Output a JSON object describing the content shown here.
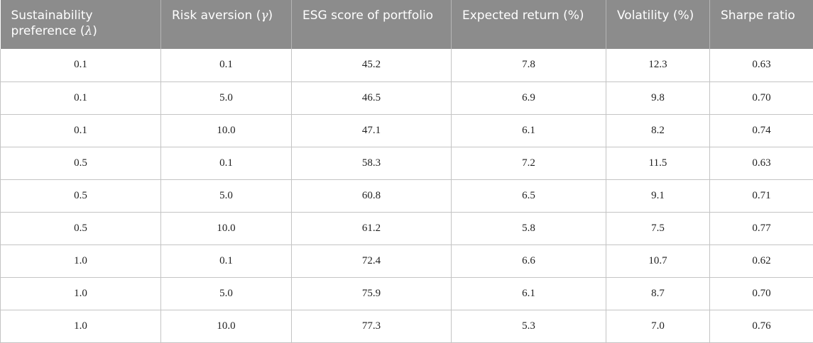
{
  "table": {
    "headers": [
      {
        "text": "Sustainability preference (",
        "symbol": "λ",
        "suffix": ")"
      },
      {
        "text": "Risk aversion (",
        "symbol": "γ",
        "suffix": ")"
      },
      {
        "text": "ESG score of portfolio",
        "symbol": "",
        "suffix": ""
      },
      {
        "text": "Expected return (%)",
        "symbol": "",
        "suffix": ""
      },
      {
        "text": "Volatility (%)",
        "symbol": "",
        "suffix": ""
      },
      {
        "text": "Sharpe ratio",
        "symbol": "",
        "suffix": ""
      }
    ],
    "rows": [
      [
        "0.1",
        "0.1",
        "45.2",
        "7.8",
        "12.3",
        "0.63"
      ],
      [
        "0.1",
        "5.0",
        "46.5",
        "6.9",
        "9.8",
        "0.70"
      ],
      [
        "0.1",
        "10.0",
        "47.1",
        "6.1",
        "8.2",
        "0.74"
      ],
      [
        "0.5",
        "0.1",
        "58.3",
        "7.2",
        "11.5",
        "0.63"
      ],
      [
        "0.5",
        "5.0",
        "60.8",
        "6.5",
        "9.1",
        "0.71"
      ],
      [
        "0.5",
        "10.0",
        "61.2",
        "5.8",
        "7.5",
        "0.77"
      ],
      [
        "1.0",
        "0.1",
        "72.4",
        "6.6",
        "10.7",
        "0.62"
      ],
      [
        "1.0",
        "5.0",
        "75.9",
        "6.1",
        "8.7",
        "0.70"
      ],
      [
        "1.0",
        "10.0",
        "77.3",
        "5.3",
        "7.0",
        "0.76"
      ]
    ]
  }
}
